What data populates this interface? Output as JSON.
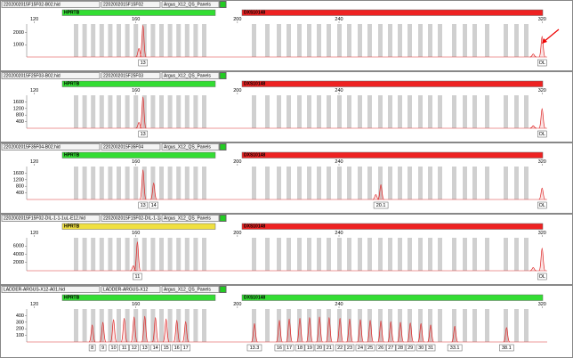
{
  "xlim": [
    117,
    322
  ],
  "xticks": [
    120,
    160,
    200,
    240,
    320
  ],
  "panels": [
    {
      "file": "2202002015F15F02-B02.hid",
      "sample": "2202002015F15F02",
      "panel_name": "Argus_X12_QS_Panels",
      "markers": [
        {
          "name": "HPRTB",
          "color": "#33dd33"
        },
        {
          "name": "DXS10148",
          "color": "#ee2222"
        }
      ],
      "ylim": [
        0,
        2700
      ],
      "yticks": [
        1000,
        2000
      ],
      "peaks": [
        {
          "size": 161.2,
          "height": 700
        },
        {
          "size": 162.8,
          "height": 2600,
          "label": "13"
        },
        {
          "size": 316.5,
          "height": 250
        },
        {
          "size": 320,
          "height": 1700,
          "label": "OL"
        }
      ]
    },
    {
      "file": "2202002015F25F03-B02.hid",
      "sample": "2202002015F25F03",
      "panel_name": "Argus_X12_QS_Panels",
      "markers": [
        {
          "name": "HPRTB",
          "color": "#33dd33"
        },
        {
          "name": "DXS10148",
          "color": "#ee2222"
        }
      ],
      "ylim": [
        0,
        2000
      ],
      "yticks": [
        400,
        800,
        1200,
        1600
      ],
      "peaks": [
        {
          "size": 161.2,
          "height": 350
        },
        {
          "size": 162.8,
          "height": 1900,
          "label": "13"
        },
        {
          "size": 316.5,
          "height": 150
        },
        {
          "size": 320,
          "height": 1200,
          "label": "OL"
        }
      ]
    },
    {
      "file": "2202002015F35F04-B02.hid",
      "sample": "2202002015F35F04",
      "panel_name": "Argus_X12_QS_Panels",
      "markers": [
        {
          "name": "HPRTB",
          "color": "#33dd33"
        },
        {
          "name": "DXS10148",
          "color": "#ee2222"
        }
      ],
      "ylim": [
        0,
        2000
      ],
      "yticks": [
        400,
        800,
        1200,
        1600
      ],
      "peaks": [
        {
          "size": 162.8,
          "height": 1800,
          "label": "13"
        },
        {
          "size": 167.0,
          "height": 1000,
          "label": "14"
        },
        {
          "size": 254.5,
          "height": 300
        },
        {
          "size": 256.5,
          "height": 900,
          "label": "20.1"
        },
        {
          "size": 320,
          "height": 700,
          "label": "OL"
        }
      ]
    },
    {
      "file": "2202002015F15F02-DIL-1-1-1uL-E12.hid",
      "sample": "2202002015F15F02-DIL-1-1-1...",
      "panel_name": "Argus_X12_QS_Panels",
      "markers": [
        {
          "name": "HPRTB",
          "color": "#f0e040"
        },
        {
          "name": "DXS10148",
          "color": "#ee2222"
        }
      ],
      "ylim": [
        0,
        8000
      ],
      "yticks": [
        2000,
        4000,
        6000
      ],
      "peaks": [
        {
          "size": 159.0,
          "height": 1200
        },
        {
          "size": 160.6,
          "height": 7000,
          "label": "11"
        },
        {
          "size": 316.5,
          "height": 800
        },
        {
          "size": 320,
          "height": 5500,
          "label": "OL"
        }
      ]
    },
    {
      "file": "LADDER-ARGUS-X12-A01.hid",
      "sample": "LADDER-ARGUS-X12",
      "panel_name": "Argus_X12_QS_Panels",
      "markers": [
        {
          "name": "HPRTB",
          "color": "#33dd33"
        },
        {
          "name": "DXS10148",
          "color": "#33dd33"
        }
      ],
      "ylim": [
        0,
        500
      ],
      "yticks": [
        100,
        200,
        300,
        400
      ],
      "peaks": [
        {
          "size": 142.8,
          "height": 260,
          "label": "8"
        },
        {
          "size": 147.0,
          "height": 300,
          "label": "9"
        },
        {
          "size": 151.2,
          "height": 340,
          "label": "10"
        },
        {
          "size": 155.4,
          "height": 360,
          "label": "11"
        },
        {
          "size": 159.3,
          "height": 380,
          "label": "12"
        },
        {
          "size": 163.5,
          "height": 390,
          "label": "13"
        },
        {
          "size": 167.7,
          "height": 370,
          "label": "14"
        },
        {
          "size": 171.9,
          "height": 350,
          "label": "15"
        },
        {
          "size": 176.1,
          "height": 330,
          "label": "16"
        },
        {
          "size": 179.6,
          "height": 310,
          "label": "17"
        },
        {
          "size": 206.7,
          "height": 280,
          "label": "13.3"
        },
        {
          "size": 216.5,
          "height": 330,
          "label": "16"
        },
        {
          "size": 220.4,
          "height": 350,
          "label": "17"
        },
        {
          "size": 224.6,
          "height": 360,
          "label": "18"
        },
        {
          "size": 228.4,
          "height": 370,
          "label": "19"
        },
        {
          "size": 232.3,
          "height": 380,
          "label": "20"
        },
        {
          "size": 236.1,
          "height": 370,
          "label": "21"
        },
        {
          "size": 240.4,
          "height": 360,
          "label": "22"
        },
        {
          "size": 244.2,
          "height": 350,
          "label": "23"
        },
        {
          "size": 248.4,
          "height": 340,
          "label": "24"
        },
        {
          "size": 252.3,
          "height": 330,
          "label": "25"
        },
        {
          "size": 256.5,
          "height": 320,
          "label": "26"
        },
        {
          "size": 260.4,
          "height": 310,
          "label": "27"
        },
        {
          "size": 264.2,
          "height": 300,
          "label": "28"
        },
        {
          "size": 268.1,
          "height": 290,
          "label": "29"
        },
        {
          "size": 272.3,
          "height": 280,
          "label": "30"
        },
        {
          "size": 276.1,
          "height": 260,
          "label": "31"
        },
        {
          "size": 285.6,
          "height": 240,
          "label": "33.1"
        },
        {
          "size": 306.0,
          "height": 220,
          "label": "38.1"
        }
      ]
    }
  ]
}
